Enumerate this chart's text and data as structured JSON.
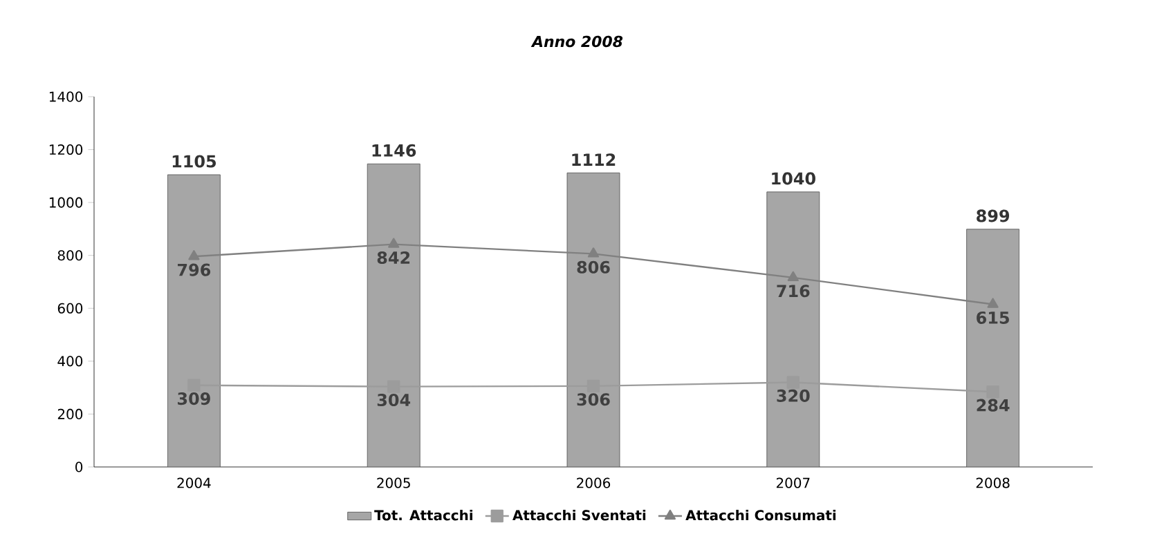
{
  "chart_data": {
    "type": "bar",
    "title": "Anno 2008",
    "categories": [
      "2004",
      "2005",
      "2006",
      "2007",
      "2008"
    ],
    "series": [
      {
        "name": "Tot. Attacchi",
        "color": "#a6a6a6",
        "values": [
          1105,
          1146,
          1112,
          1040,
          899
        ]
      },
      {
        "name": "Attacchi Sventati",
        "type": "line",
        "marker": "square",
        "color": "#9c9c9c",
        "values": [
          309,
          304,
          306,
          320,
          284
        ]
      },
      {
        "name": "Attacchi Consumati",
        "type": "line",
        "marker": "triangle",
        "color": "#808080",
        "values": [
          796,
          842,
          806,
          716,
          615
        ]
      }
    ],
    "ylim": [
      0,
      1400
    ],
    "yticks": [
      0,
      200,
      400,
      600,
      800,
      1000,
      1200,
      1400
    ],
    "data_labels": true,
    "legend": "bottom",
    "grid": false
  }
}
